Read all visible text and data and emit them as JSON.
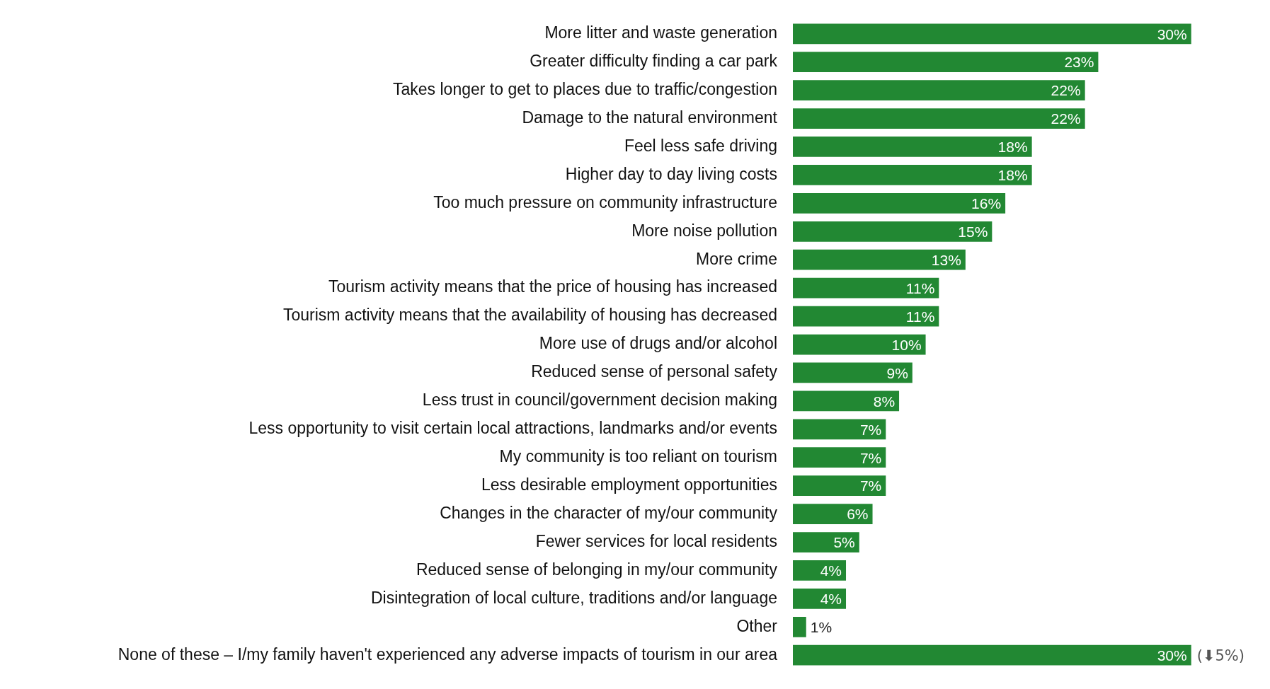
{
  "chart_data": {
    "type": "bar",
    "orientation": "horizontal",
    "legend": false,
    "categories": [
      "More litter and waste generation",
      "Greater difficulty finding a car park",
      "Takes longer to get to places due to traffic/congestion",
      "Damage to the natural environment",
      "Feel less safe driving",
      "Higher day to day living costs",
      "Too much pressure on community infrastructure",
      "More noise pollution",
      "More crime",
      "Tourism activity means that the price of housing has increased",
      "Tourism activity means that the availability of housing has decreased",
      "More use of drugs and/or alcohol",
      "Reduced sense of personal safety",
      "Less trust in council/government decision making",
      "Less opportunity to visit certain local attractions, landmarks and/or events",
      "My community is too reliant on tourism",
      "Less desirable employment opportunities",
      "Changes in the character of my/our community",
      "Fewer services for local residents",
      "Reduced sense of belonging in my/our community",
      "Disintegration of local culture, traditions and/or language",
      "Other",
      "None of these – I/my family haven't experienced any adverse impacts of tourism in our area"
    ],
    "values": [
      30,
      23,
      22,
      22,
      18,
      18,
      16,
      15,
      13,
      11,
      11,
      10,
      9,
      8,
      7,
      7,
      7,
      6,
      5,
      4,
      4,
      1,
      30
    ],
    "value_labels": [
      "30%",
      "23%",
      "22%",
      "22%",
      "18%",
      "18%",
      "16%",
      "15%",
      "13%",
      "11%",
      "11%",
      "10%",
      "9%",
      "8%",
      "7%",
      "7%",
      "7%",
      "6%",
      "5%",
      "4%",
      "4%",
      "1%",
      "30%"
    ],
    "color": "#228833",
    "annotations": [
      {
        "text": "(⬇5%)",
        "x": 30,
        "y": "None of these – I/my family haven't experienced any adverse impacts of tourism in our area"
      }
    ]
  }
}
